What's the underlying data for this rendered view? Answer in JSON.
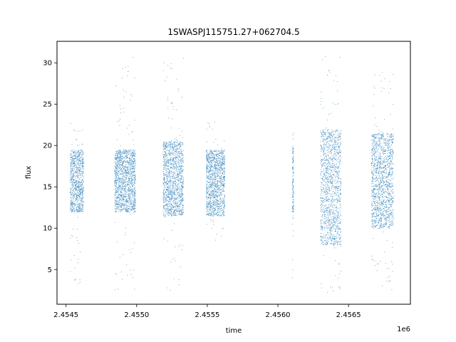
{
  "chart_data": {
    "type": "scatter",
    "title": "1SWASPJ115751.27+062704.5",
    "xlabel": "time",
    "ylabel": "flux",
    "x_offset_label": "1e6",
    "x_ticks": [
      2454500,
      2455000,
      2455500,
      2456000,
      2456500
    ],
    "x_tick_labels": [
      "2.4545",
      "2.4550",
      "2.4555",
      "2.4560",
      "2.4565"
    ],
    "y_ticks": [
      5,
      10,
      15,
      20,
      25,
      30
    ],
    "y_tick_labels": [
      "5",
      "10",
      "15",
      "20",
      "25",
      "30"
    ],
    "xlim": [
      2454436,
      2456938
    ],
    "ylim": [
      0.8,
      32.6
    ],
    "grid": false,
    "marker_color": "#1f77b4",
    "clusters": [
      {
        "x_start": 2454527,
        "x_end": 2454622,
        "y_core": [
          12,
          19.5
        ],
        "y_extent": [
          3,
          23
        ]
      },
      {
        "x_start": 2454842,
        "x_end": 2454990,
        "y_core": [
          12,
          19.5
        ],
        "y_extent": [
          2.5,
          31
        ]
      },
      {
        "x_start": 2455185,
        "x_end": 2455330,
        "y_core": [
          11.5,
          20.5
        ],
        "y_extent": [
          2,
          31
        ]
      },
      {
        "x_start": 2455490,
        "x_end": 2455622,
        "y_core": [
          11.5,
          19.5
        ],
        "y_extent": [
          8,
          23
        ]
      },
      {
        "x_start": 2456100,
        "x_end": 2456110,
        "y_core": [
          12,
          20
        ],
        "y_extent": [
          3.5,
          23
        ]
      },
      {
        "x_start": 2456300,
        "x_end": 2456445,
        "y_core": [
          8,
          22
        ],
        "y_extent": [
          2,
          31
        ]
      },
      {
        "x_start": 2456660,
        "x_end": 2456815,
        "y_core": [
          10,
          21.5
        ],
        "y_extent": [
          2.5,
          29.5
        ]
      }
    ]
  }
}
